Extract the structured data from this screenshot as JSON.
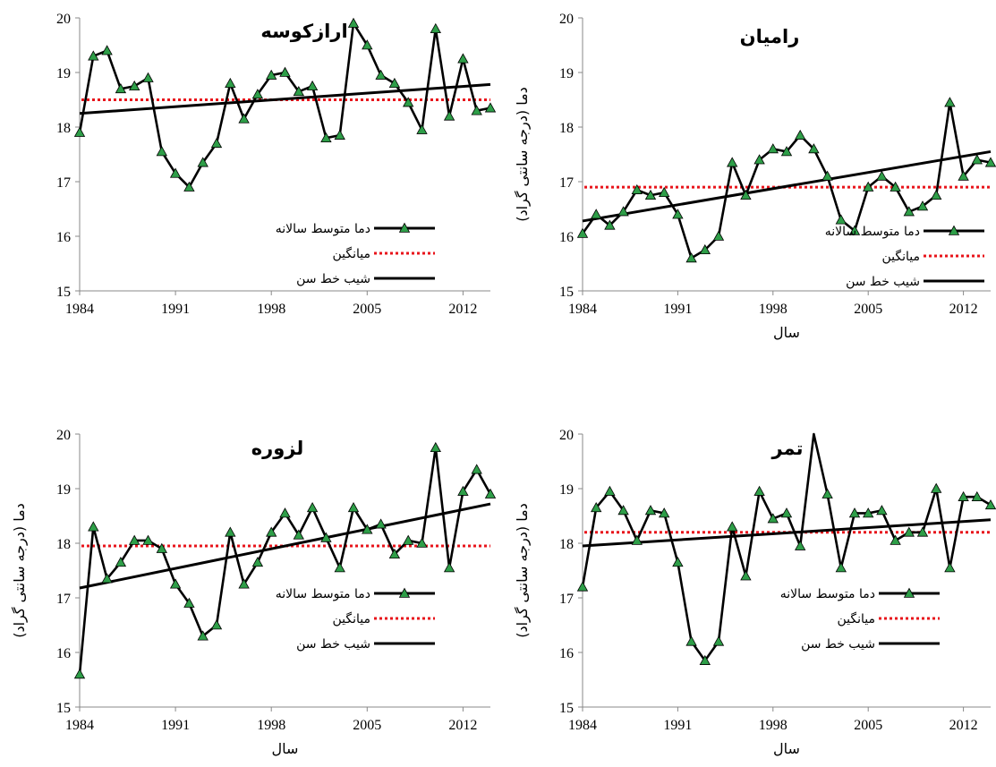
{
  "legend": {
    "annual": "دما متوسط سالانه",
    "mean": "میانگین",
    "trend": "شیب خط سن"
  },
  "colors": {
    "series_line": "#000000",
    "marker_fill": "#2e9e48",
    "mean_line": "#e8141b",
    "trend_line": "#000000"
  },
  "marker": "triangle",
  "chart_data": [
    {
      "type": "line",
      "title": "ارازکوسه",
      "xlabel": "",
      "ylabel": "",
      "xticks": [
        1984,
        1991,
        1998,
        2005,
        2012
      ],
      "yticks": [
        15,
        16,
        17,
        18,
        19,
        20
      ],
      "xlim": [
        1984,
        2014
      ],
      "ylim": [
        15,
        20
      ],
      "x": [
        1984,
        1985,
        1986,
        1987,
        1988,
        1989,
        1990,
        1991,
        1992,
        1993,
        1994,
        1995,
        1996,
        1997,
        1998,
        1999,
        2000,
        2001,
        2002,
        2003,
        2004,
        2005,
        2006,
        2007,
        2008,
        2009,
        2010,
        2011,
        2012,
        2013,
        2014
      ],
      "series": [
        {
          "values": [
            17.9,
            19.3,
            19.4,
            18.7,
            18.75,
            18.9,
            17.55,
            17.15,
            16.9,
            17.35,
            17.7,
            18.8,
            18.15,
            18.6,
            18.95,
            19.0,
            18.65,
            18.75,
            17.8,
            17.85,
            19.9,
            19.5,
            18.95,
            18.8,
            18.45,
            17.95,
            19.8,
            18.2,
            19.25,
            18.3,
            18.35
          ]
        }
      ],
      "mean": 18.5,
      "trend": [
        18.25,
        18.78
      ],
      "legend_position": "bottom-right"
    },
    {
      "type": "line",
      "title": "رامیان",
      "xlabel": "سال",
      "ylabel": "دما (درجه سانتی گراد)",
      "xticks": [
        1984,
        1991,
        1998,
        2005,
        2012
      ],
      "yticks": [
        15,
        16,
        17,
        18,
        19,
        20
      ],
      "xlim": [
        1984,
        2014
      ],
      "ylim": [
        15,
        20
      ],
      "x": [
        1984,
        1985,
        1986,
        1987,
        1988,
        1989,
        1990,
        1991,
        1992,
        1993,
        1994,
        1995,
        1996,
        1997,
        1998,
        1999,
        2000,
        2001,
        2002,
        2003,
        2004,
        2005,
        2006,
        2007,
        2008,
        2009,
        2010,
        2011,
        2012,
        2013,
        2014
      ],
      "series": [
        {
          "values": [
            16.05,
            16.4,
            16.2,
            16.45,
            16.85,
            16.75,
            16.8,
            16.4,
            15.6,
            15.75,
            16.0,
            17.35,
            16.75,
            17.4,
            17.6,
            17.55,
            17.85,
            17.6,
            17.1,
            16.3,
            16.1,
            16.9,
            17.1,
            16.9,
            16.45,
            16.55,
            16.75,
            18.45,
            17.1,
            17.4,
            17.35
          ]
        }
      ],
      "mean": 16.9,
      "trend": [
        16.28,
        17.55
      ],
      "legend_position": "bottom-right"
    },
    {
      "type": "line",
      "title": "لزوره",
      "xlabel": "سال",
      "ylabel": "دما (درجه سانتی گراد)",
      "xticks": [
        1984,
        1991,
        1998,
        2005,
        2012
      ],
      "yticks": [
        15,
        16,
        17,
        18,
        19,
        20
      ],
      "xlim": [
        1984,
        2014
      ],
      "ylim": [
        15,
        20
      ],
      "x": [
        1984,
        1985,
        1986,
        1987,
        1988,
        1989,
        1990,
        1991,
        1992,
        1993,
        1994,
        1995,
        1996,
        1997,
        1998,
        1999,
        2000,
        2001,
        2002,
        2003,
        2004,
        2005,
        2006,
        2007,
        2008,
        2009,
        2010,
        2011,
        2012,
        2013,
        2014
      ],
      "series": [
        {
          "values": [
            15.6,
            18.3,
            17.35,
            17.65,
            18.05,
            18.05,
            17.9,
            17.25,
            16.9,
            16.3,
            16.5,
            18.2,
            17.25,
            17.65,
            18.2,
            18.55,
            18.15,
            18.65,
            18.1,
            17.55,
            18.65,
            18.25,
            18.35,
            17.8,
            18.05,
            18.0,
            19.75,
            17.55,
            18.95,
            19.35,
            18.9
          ]
        }
      ],
      "mean": 17.95,
      "trend": [
        17.18,
        18.72
      ],
      "legend_position": "center-right"
    },
    {
      "type": "line",
      "title": "تمر",
      "xlabel": "سال",
      "ylabel": "دما (درجه سانتی گراد)",
      "xticks": [
        1984,
        1991,
        1998,
        2005,
        2012
      ],
      "yticks": [
        15,
        16,
        17,
        18,
        19,
        20
      ],
      "xlim": [
        1984,
        2014
      ],
      "ylim": [
        15,
        20
      ],
      "x": [
        1984,
        1985,
        1986,
        1987,
        1988,
        1989,
        1990,
        1991,
        1992,
        1993,
        1994,
        1995,
        1996,
        1997,
        1998,
        1999,
        2000,
        2001,
        2002,
        2003,
        2004,
        2005,
        2006,
        2007,
        2008,
        2009,
        2010,
        2011,
        2012,
        2013,
        2014
      ],
      "series": [
        {
          "values": [
            17.2,
            18.65,
            18.95,
            18.6,
            18.05,
            18.6,
            18.55,
            17.65,
            16.2,
            15.85,
            16.2,
            18.3,
            17.4,
            18.95,
            18.45,
            18.55,
            17.95,
            20.05,
            18.9,
            17.55,
            18.55,
            18.55,
            18.6,
            18.05,
            18.2,
            18.2,
            19.0,
            17.55,
            18.85,
            18.85,
            18.7
          ]
        }
      ],
      "mean": 18.2,
      "trend": [
        17.95,
        18.43
      ],
      "legend_position": "center-right"
    }
  ]
}
